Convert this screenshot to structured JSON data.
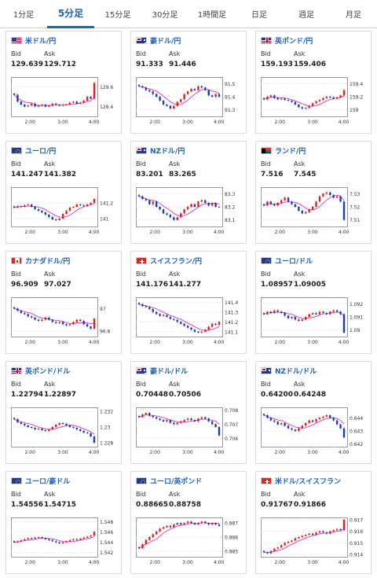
{
  "tabs": [
    {
      "label": "1分足",
      "active": false
    },
    {
      "label": "5分足",
      "active": true
    },
    {
      "label": "15分足",
      "active": false
    },
    {
      "label": "30分足",
      "active": false
    },
    {
      "label": "1時間足",
      "active": false
    },
    {
      "label": "日足",
      "active": false
    },
    {
      "label": "週足",
      "active": false
    },
    {
      "label": "月足",
      "active": false
    }
  ],
  "labels": {
    "bid": "Bid",
    "ask": "Ask"
  },
  "colors": {
    "accent": "#1f63b4",
    "up": "#e02020",
    "down": "#1f3ea8",
    "ma": "#d020d0"
  },
  "time_ticks": [
    "2:00",
    "3:00",
    "4:00"
  ],
  "cards": [
    {
      "pair": "米ドル/円",
      "flag": "us",
      "bid": "129.639",
      "ask": "129.712",
      "y_ticks": [
        "129.6",
        "129.4"
      ],
      "ylim": [
        129.3,
        129.7
      ],
      "close": [
        129.52,
        129.45,
        129.42,
        129.4,
        129.41,
        129.43,
        129.4,
        129.41,
        129.42,
        129.4,
        129.41,
        129.43,
        129.42,
        129.41,
        129.42,
        129.42,
        129.44,
        129.45,
        129.43,
        129.44,
        129.46,
        129.5,
        129.48,
        129.64
      ]
    },
    {
      "pair": "豪ドル/円",
      "flag": "au",
      "bid": "91.333",
      "ask": "91.446",
      "y_ticks": [
        "91.5",
        "91.4",
        "91.3"
      ],
      "ylim": [
        91.25,
        91.55
      ],
      "close": [
        91.48,
        91.47,
        91.45,
        91.44,
        91.42,
        91.4,
        91.37,
        91.34,
        91.33,
        91.31,
        91.33,
        91.36,
        91.38,
        91.42,
        91.44,
        91.46,
        91.45,
        91.48,
        91.47,
        91.45,
        91.41,
        91.4,
        91.42,
        91.4
      ]
    },
    {
      "pair": "英ポンド/円",
      "flag": "gb",
      "bid": "159.193",
      "ask": "159.406",
      "y_ticks": [
        "159.4",
        "159.2",
        "159"
      ],
      "ylim": [
        158.9,
        159.5
      ],
      "close": [
        159.16,
        159.2,
        159.22,
        159.18,
        159.16,
        159.17,
        159.15,
        159.14,
        159.12,
        159.08,
        159.04,
        159.02,
        159.03,
        159.06,
        159.1,
        159.13,
        159.15,
        159.18,
        159.2,
        159.19,
        159.17,
        159.19,
        159.22,
        159.3
      ]
    },
    {
      "pair": "ユーロ/円",
      "flag": "eu",
      "bid": "141.247",
      "ask": "141.382",
      "y_ticks": [
        "141.2",
        "141"
      ],
      "ylim": [
        140.9,
        141.4
      ],
      "close": [
        141.14,
        141.16,
        141.15,
        141.17,
        141.18,
        141.15,
        141.12,
        141.1,
        141.08,
        141.05,
        141.02,
        140.99,
        140.98,
        141.0,
        141.06,
        141.1,
        141.14,
        141.15,
        141.18,
        141.17,
        141.16,
        141.18,
        141.2,
        141.25
      ]
    },
    {
      "pair": "NZドル/円",
      "flag": "nz",
      "bid": "83.201",
      "ask": "83.265",
      "y_ticks": [
        "83.3",
        "83.2",
        "83.1"
      ],
      "ylim": [
        83.05,
        83.35
      ],
      "close": [
        83.28,
        83.26,
        83.25,
        83.22,
        83.24,
        83.2,
        83.18,
        83.15,
        83.14,
        83.12,
        83.1,
        83.12,
        83.15,
        83.18,
        83.2,
        83.22,
        83.2,
        83.24,
        83.25,
        83.23,
        83.21,
        83.23,
        83.2,
        83.2
      ]
    },
    {
      "pair": "ランド/円",
      "flag": "za",
      "bid": "7.516",
      "ask": "7.545",
      "y_ticks": [
        "7.53",
        "7.52",
        "7.51"
      ],
      "ylim": [
        7.505,
        7.535
      ],
      "close": [
        7.521,
        7.524,
        7.522,
        7.521,
        7.523,
        7.525,
        7.527,
        7.524,
        7.522,
        7.52,
        7.517,
        7.515,
        7.516,
        7.518,
        7.52,
        7.524,
        7.528,
        7.53,
        7.531,
        7.529,
        7.527,
        7.528,
        7.524,
        7.51
      ]
    },
    {
      "pair": "カナダドル/円",
      "flag": "ca",
      "bid": "96.909",
      "ask": "97.027",
      "y_ticks": [
        "97",
        "96.8"
      ],
      "ylim": [
        96.75,
        97.1
      ],
      "close": [
        97.0,
        96.98,
        96.96,
        96.95,
        96.93,
        96.92,
        96.9,
        96.89,
        96.9,
        96.92,
        96.9,
        96.88,
        96.87,
        96.88,
        96.86,
        96.85,
        96.86,
        96.88,
        96.9,
        96.89,
        96.86,
        96.84,
        96.82,
        96.91
      ]
    },
    {
      "pair": "スイスフラン/円",
      "flag": "ch",
      "bid": "141.176",
      "ask": "141.277",
      "y_ticks": [
        "141.4",
        "141.3",
        "141.2",
        "141.1"
      ],
      "ylim": [
        141.05,
        141.45
      ],
      "close": [
        141.38,
        141.36,
        141.35,
        141.33,
        141.3,
        141.28,
        141.26,
        141.27,
        141.25,
        141.23,
        141.22,
        141.2,
        141.18,
        141.16,
        141.14,
        141.12,
        141.1,
        141.09,
        141.1,
        141.12,
        141.15,
        141.18,
        141.17,
        141.2
      ]
    },
    {
      "pair": "ユーロ/ドル",
      "flag": "eu",
      "bid": "1.08957",
      "ask": "1.09005",
      "y_ticks": [
        "1.092",
        "1.091",
        "1.09"
      ],
      "ylim": [
        1.0895,
        1.0925
      ],
      "close": [
        1.0912,
        1.0914,
        1.0913,
        1.0915,
        1.0914,
        1.0913,
        1.0911,
        1.0909,
        1.091,
        1.0908,
        1.0907,
        1.0908,
        1.091,
        1.0912,
        1.0913,
        1.0912,
        1.0914,
        1.0913,
        1.0912,
        1.0914,
        1.0915,
        1.0914,
        1.0912,
        1.0898
      ]
    },
    {
      "pair": "英ポンド/ドル",
      "flag": "gb",
      "bid": "1.22794",
      "ask": "1.22897",
      "y_ticks": [
        "1.232",
        "1.23",
        "1.228"
      ],
      "ylim": [
        1.2275,
        1.2325
      ],
      "close": [
        1.231,
        1.2306,
        1.2304,
        1.2302,
        1.23,
        1.2299,
        1.2297,
        1.2298,
        1.2296,
        1.2295,
        1.2297,
        1.23,
        1.2303,
        1.2305,
        1.2304,
        1.2302,
        1.23,
        1.2299,
        1.2297,
        1.2295,
        1.2293,
        1.2292,
        1.2288,
        1.228
      ]
    },
    {
      "pair": "豪ドル/ドル",
      "flag": "au",
      "bid": "0.70448",
      "ask": "0.70506",
      "y_ticks": [
        "0.708",
        "0.707",
        "0.706"
      ],
      "ylim": [
        0.7054,
        0.7082
      ],
      "close": [
        0.7075,
        0.7077,
        0.7078,
        0.7076,
        0.7075,
        0.7074,
        0.7073,
        0.7072,
        0.7073,
        0.7071,
        0.707,
        0.7071,
        0.7072,
        0.7073,
        0.7074,
        0.7073,
        0.7072,
        0.7074,
        0.7075,
        0.7074,
        0.7072,
        0.707,
        0.7068,
        0.7062
      ]
    },
    {
      "pair": "NZドル/ドル",
      "flag": "nz",
      "bid": "0.64200",
      "ask": "0.64248",
      "y_ticks": [
        "0.644",
        "0.643",
        "0.642"
      ],
      "ylim": [
        0.6418,
        0.6448
      ],
      "close": [
        0.6442,
        0.644,
        0.6438,
        0.6437,
        0.6435,
        0.6436,
        0.6434,
        0.6432,
        0.6431,
        0.643,
        0.6432,
        0.6434,
        0.6436,
        0.6438,
        0.6437,
        0.6439,
        0.644,
        0.6441,
        0.6442,
        0.644,
        0.6438,
        0.6435,
        0.6432,
        0.6425
      ]
    },
    {
      "pair": "ユーロ/豪ドル",
      "flag": "eu",
      "bid": "1.54556",
      "ask": "1.54715",
      "y_ticks": [
        "1.548",
        "1.546",
        "1.544",
        "1.542"
      ],
      "ylim": [
        1.5412,
        1.5488
      ],
      "close": [
        1.544,
        1.5442,
        1.5444,
        1.5446,
        1.5448,
        1.5447,
        1.5449,
        1.545,
        1.5448,
        1.5446,
        1.5444,
        1.5442,
        1.544,
        1.5438,
        1.544,
        1.5442,
        1.5444,
        1.5446,
        1.5445,
        1.5447,
        1.5449,
        1.5451,
        1.5453,
        1.546
      ]
    },
    {
      "pair": "ユーロ/英ポンド",
      "flag": "eu",
      "bid": "0.88665",
      "ask": "0.88758",
      "y_ticks": [
        "0.887",
        "0.886",
        "0.885"
      ],
      "ylim": [
        0.8846,
        0.8874
      ],
      "close": [
        0.8852,
        0.8855,
        0.8858,
        0.886,
        0.8862,
        0.8864,
        0.8866,
        0.8867,
        0.8868,
        0.8867,
        0.8869,
        0.887,
        0.8869,
        0.887,
        0.8871,
        0.887,
        0.8869,
        0.887,
        0.8871,
        0.887,
        0.8869,
        0.887,
        0.8869,
        0.8868
      ]
    },
    {
      "pair": "米ドル/スイスフラン",
      "flag": "ch",
      "bid": "0.91767",
      "ask": "0.91866",
      "y_ticks": [
        "0.917",
        "0.916",
        "0.915",
        "0.914"
      ],
      "ylim": [
        0.9138,
        0.9172
      ],
      "close": [
        0.9142,
        0.9141,
        0.9143,
        0.9145,
        0.9146,
        0.9148,
        0.915,
        0.9151,
        0.9152,
        0.9154,
        0.9155,
        0.9156,
        0.9157,
        0.9158,
        0.9157,
        0.9159,
        0.916,
        0.9159,
        0.9158,
        0.916,
        0.9161,
        0.9162,
        0.9161,
        0.917
      ]
    }
  ]
}
